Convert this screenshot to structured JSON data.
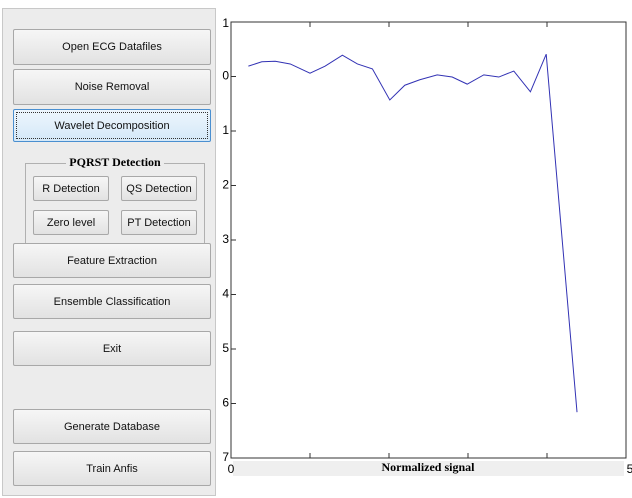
{
  "buttons_top": [
    "Open ECG Datafiles",
    "Noise Removal",
    "Wavelet Decomposition"
  ],
  "group": {
    "title": "PQRST Detection",
    "buttons": [
      "R Detection",
      "QS Detection",
      "Zero level",
      "PT Detection"
    ]
  },
  "buttons_bottom": [
    "Feature Extraction",
    "Ensemble Classification",
    "Exit",
    "Generate Database",
    "Train Anfis"
  ],
  "chart_data": {
    "type": "line",
    "xlabel": "Normalized signal",
    "x": [
      0.22,
      0.39,
      0.56,
      0.75,
      1.0,
      1.19,
      1.41,
      1.6,
      1.79,
      2.01,
      2.2,
      2.39,
      2.61,
      2.8,
      2.99,
      3.2,
      3.39,
      3.58,
      3.79,
      3.99,
      4.38
    ],
    "values": [
      0.19,
      0.27,
      0.28,
      0.23,
      0.06,
      0.19,
      0.39,
      0.23,
      0.14,
      -0.43,
      -0.16,
      -0.06,
      0.03,
      -0.01,
      -0.14,
      0.03,
      -0.01,
      0.1,
      -0.28,
      0.41,
      -6.16
    ],
    "color": "#3232b4",
    "xlim": [
      0,
      5
    ],
    "xticks": [
      0,
      5
    ],
    "xminorticks": [
      1,
      2,
      3,
      4
    ],
    "ylim": [
      -7,
      1
    ],
    "yticks": [
      1,
      0,
      {
        "value": -1,
        "label": "1"
      },
      {
        "value": -2,
        "label": "2"
      },
      {
        "value": -3,
        "label": "3"
      },
      {
        "value": -4,
        "label": "4"
      },
      {
        "value": -5,
        "label": "5"
      },
      {
        "value": -6,
        "label": "6"
      },
      {
        "value": -7,
        "label": "7"
      }
    ]
  }
}
